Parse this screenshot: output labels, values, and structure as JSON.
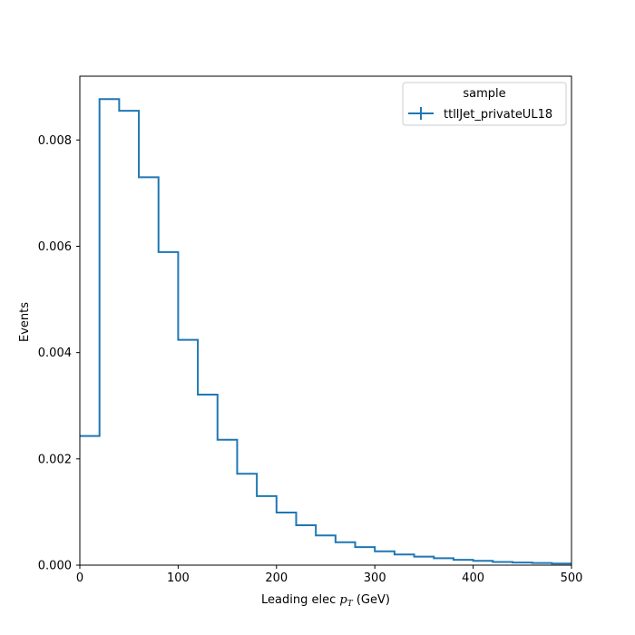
{
  "chart_data": {
    "type": "histogram",
    "xlabel_prefix": "Leading elec ",
    "xlabel_math_base": "p",
    "xlabel_math_sub": "T",
    "xlabel_suffix": " (GeV)",
    "ylabel": "Events",
    "xlim": [
      0,
      500
    ],
    "ylim": [
      0,
      0.0092
    ],
    "x_ticks": [
      "0",
      "100",
      "200",
      "300",
      "400",
      "500"
    ],
    "y_ticks": [
      "0.000",
      "0.002",
      "0.004",
      "0.006",
      "0.008"
    ],
    "bin_edges": [
      0,
      20,
      40,
      60,
      80,
      100,
      120,
      140,
      160,
      180,
      200,
      220,
      240,
      260,
      280,
      300,
      320,
      340,
      360,
      380,
      400,
      420,
      440,
      460,
      480,
      500
    ],
    "series": [
      {
        "name": "ttllJet_privateUL18",
        "color": "#1f77b4",
        "values": [
          0.00243,
          0.00877,
          0.00855,
          0.0073,
          0.00589,
          0.00424,
          0.00321,
          0.00236,
          0.00172,
          0.0013,
          0.00099,
          0.00075,
          0.00056,
          0.00043,
          0.00034,
          0.00026,
          0.0002,
          0.00016,
          0.00013,
          0.0001,
          8e-05,
          6e-05,
          5e-05,
          4e-05,
          3e-05
        ]
      }
    ],
    "legend_title": "sample",
    "legend_position": "top-right",
    "grid": false
  }
}
